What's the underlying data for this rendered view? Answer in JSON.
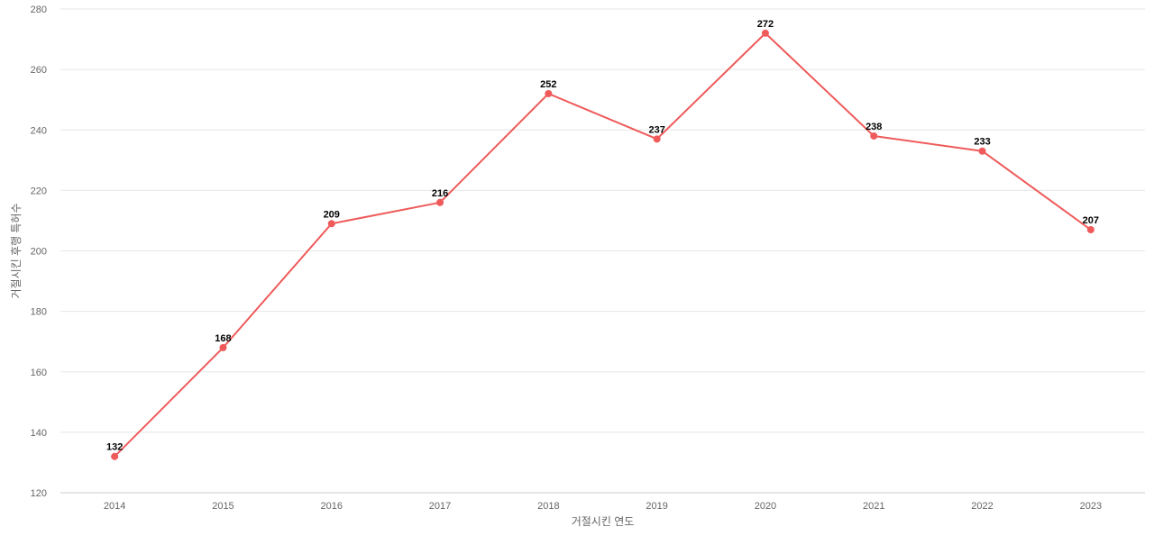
{
  "chart_data": {
    "type": "line",
    "title": "",
    "xlabel": "거절시킨 연도",
    "ylabel": "거절시킨 후행 특허수",
    "categories": [
      "2014",
      "2015",
      "2016",
      "2017",
      "2018",
      "2019",
      "2020",
      "2021",
      "2022",
      "2023"
    ],
    "series": [
      {
        "values": [
          132,
          168,
          209,
          216,
          252,
          237,
          272,
          238,
          233,
          207
        ],
        "color": "#ef5a5a"
      }
    ],
    "ylim": [
      120,
      280
    ],
    "yticks": [
      120,
      140,
      160,
      180,
      200,
      220,
      240,
      260,
      280
    ],
    "grid": true,
    "data_labels": true
  }
}
